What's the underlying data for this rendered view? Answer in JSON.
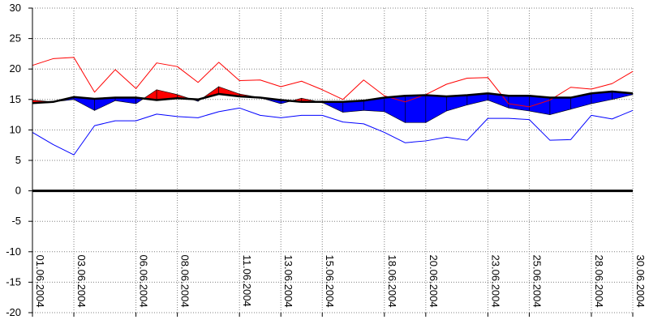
{
  "chart_data": {
    "type": "area",
    "title": "",
    "xlabel": "",
    "ylabel": "",
    "ylim": [
      -20,
      30
    ],
    "yticks": [
      30,
      25,
      20,
      15,
      10,
      5,
      0,
      -5,
      -10,
      -15,
      -20
    ],
    "grid": true,
    "legend": "none",
    "x": [
      "01.06.2004",
      "02.06.2004",
      "03.06.2004",
      "04.06.2004",
      "05.06.2004",
      "06.06.2004",
      "07.06.2004",
      "08.06.2004",
      "09.06.2004",
      "10.06.2004",
      "11.06.2004",
      "12.06.2004",
      "13.06.2004",
      "14.06.2004",
      "15.06.2004",
      "16.06.2004",
      "17.06.2004",
      "18.06.2004",
      "19.06.2004",
      "20.06.2004",
      "21.06.2004",
      "22.06.2004",
      "23.06.2004",
      "24.06.2004",
      "25.06.2004",
      "26.06.2004",
      "27.06.2004",
      "28.06.2004",
      "29.06.2004",
      "30.06.2004"
    ],
    "xtick_labels": [
      {
        "index": 0,
        "label": "01.06.2004"
      },
      {
        "index": 2,
        "label": "03.06.2004"
      },
      {
        "index": 5,
        "label": "06.06.2004"
      },
      {
        "index": 7,
        "label": "08.06.2004"
      },
      {
        "index": 10,
        "label": "11.06.2004"
      },
      {
        "index": 12,
        "label": "13.06.2004"
      },
      {
        "index": 14,
        "label": "15.06.2004"
      },
      {
        "index": 17,
        "label": "18.06.2004"
      },
      {
        "index": 19,
        "label": "20.06.2004"
      },
      {
        "index": 22,
        "label": "23.06.2004"
      },
      {
        "index": 24,
        "label": "25.06.2004"
      },
      {
        "index": 27,
        "label": "28.06.2004"
      },
      {
        "index": 29,
        "label": "30.06.2004"
      }
    ],
    "series": [
      {
        "color": "#ff0000",
        "values": [
          20.6,
          21.7,
          21.9,
          16.2,
          19.9,
          16.8,
          21.0,
          20.4,
          17.8,
          21.1,
          18.1,
          18.2,
          17.1,
          18.0,
          16.6,
          15.0,
          18.2,
          15.6,
          14.6,
          15.8,
          17.5,
          18.5,
          18.6,
          14.3,
          13.8,
          14.9,
          17.0,
          16.7,
          17.6,
          19.6
        ]
      },
      {
        "color": "#000000",
        "values": [
          14.4,
          14.6,
          15.4,
          15.1,
          15.3,
          15.3,
          14.9,
          15.2,
          15.0,
          15.9,
          15.5,
          15.3,
          14.9,
          14.6,
          14.6,
          14.6,
          14.8,
          15.3,
          15.6,
          15.7,
          15.5,
          15.7,
          16.0,
          15.6,
          15.6,
          15.3,
          15.3,
          16.0,
          16.3,
          16.0
        ]
      },
      {
        "color": "#0000ff",
        "values": [
          9.6,
          7.6,
          5.9,
          10.7,
          11.5,
          11.5,
          12.6,
          12.2,
          12.0,
          13.0,
          13.6,
          12.4,
          12.0,
          12.4,
          12.4,
          11.3,
          11.0,
          9.6,
          7.9,
          8.2,
          8.8,
          8.3,
          11.9,
          11.9,
          11.7,
          8.3,
          8.4,
          12.4,
          11.8,
          13.2
        ]
      },
      {
        "color": "#ff0000",
        "values": [
          14.9,
          14.6,
          15.0,
          13.2,
          14.8,
          14.3,
          16.6,
          15.8,
          14.7,
          17.1,
          15.9,
          15.3,
          14.3,
          15.2,
          14.5,
          12.9,
          13.2,
          13.0,
          11.2,
          11.2,
          13.1,
          14.1,
          14.9,
          13.6,
          13.1,
          12.5,
          13.4,
          14.3,
          15.0,
          15.8
        ]
      }
    ]
  }
}
